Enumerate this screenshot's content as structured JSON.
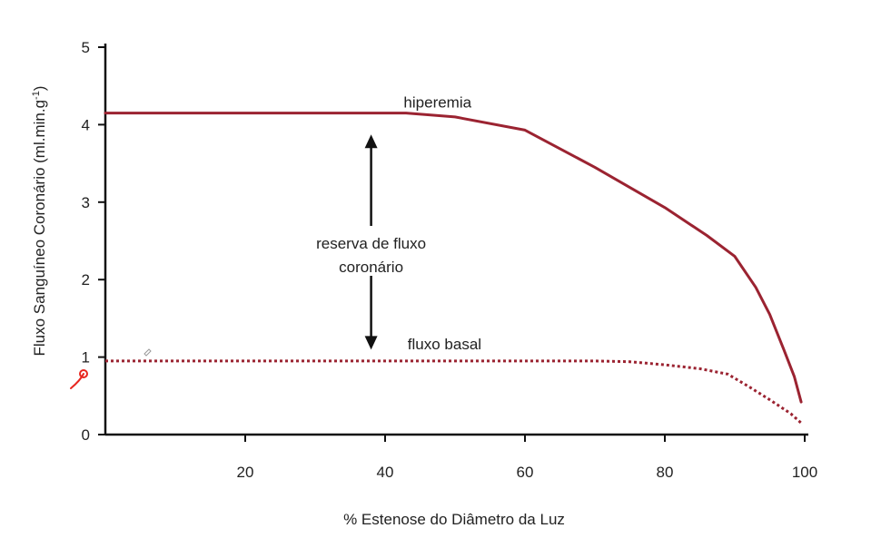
{
  "chart_data": {
    "type": "line",
    "title": "",
    "xlabel": "% Estenose do Diâmetro da Luz",
    "ylabel": "Fluxo Sanguíneo Coronário (ml.min.g",
    "ylabel_superscript": "-1",
    "ylabel_close": ")",
    "xlim": [
      0,
      100
    ],
    "ylim": [
      0,
      5
    ],
    "xticks": [
      20,
      40,
      60,
      80,
      100
    ],
    "yticks": [
      0,
      1,
      2,
      3,
      4,
      5
    ],
    "grid": false,
    "colors": {
      "series": "#9b2331",
      "axis": "#111111",
      "arrow": "#111111",
      "pen_mark": "#e8261f"
    },
    "series": [
      {
        "name": "hiperemia",
        "style": "solid",
        "x": [
          0,
          20,
          40,
          43,
          50,
          60,
          70,
          80,
          86,
          90,
          93,
          95,
          97,
          98.5,
          99.5
        ],
        "y": [
          4.15,
          4.15,
          4.15,
          4.15,
          4.1,
          3.93,
          3.45,
          2.93,
          2.57,
          2.3,
          1.9,
          1.55,
          1.1,
          0.75,
          0.42
        ]
      },
      {
        "name": "fluxo basal",
        "style": "dotted",
        "x": [
          0,
          20,
          40,
          60,
          70,
          75,
          80,
          85,
          89,
          92,
          95,
          98,
          99.5
        ],
        "y": [
          0.95,
          0.95,
          0.95,
          0.95,
          0.95,
          0.94,
          0.9,
          0.85,
          0.78,
          0.62,
          0.45,
          0.27,
          0.15
        ]
      }
    ],
    "annotations": {
      "reserve_line1": "reserva de fluxo",
      "reserve_line2": "coronário",
      "reserve_arrow": {
        "x": 38,
        "y_from": 1.12,
        "y_to": 3.85
      }
    }
  }
}
